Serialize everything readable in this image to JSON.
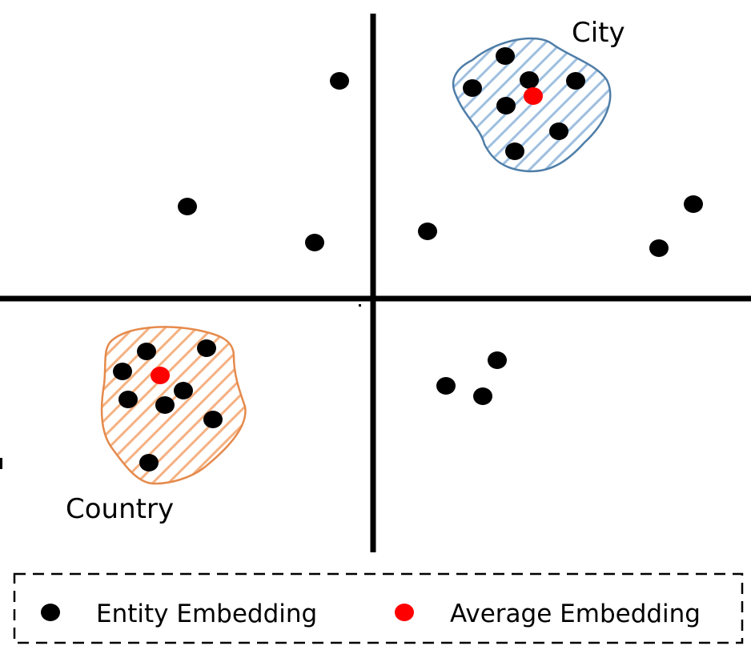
{
  "clusters": {
    "city": {
      "label": "City",
      "fill_color": "#9fc0e0",
      "stroke_color": "#4f7ea8"
    },
    "country": {
      "label": "Country",
      "fill_color": "#f4b282",
      "stroke_color": "#e58a4c"
    }
  },
  "legend": {
    "entity_label": "Entity Embedding",
    "average_label": "Average Embedding"
  },
  "colors": {
    "entity": "#000000",
    "average": "#ff0000",
    "axes": "#000000"
  }
}
